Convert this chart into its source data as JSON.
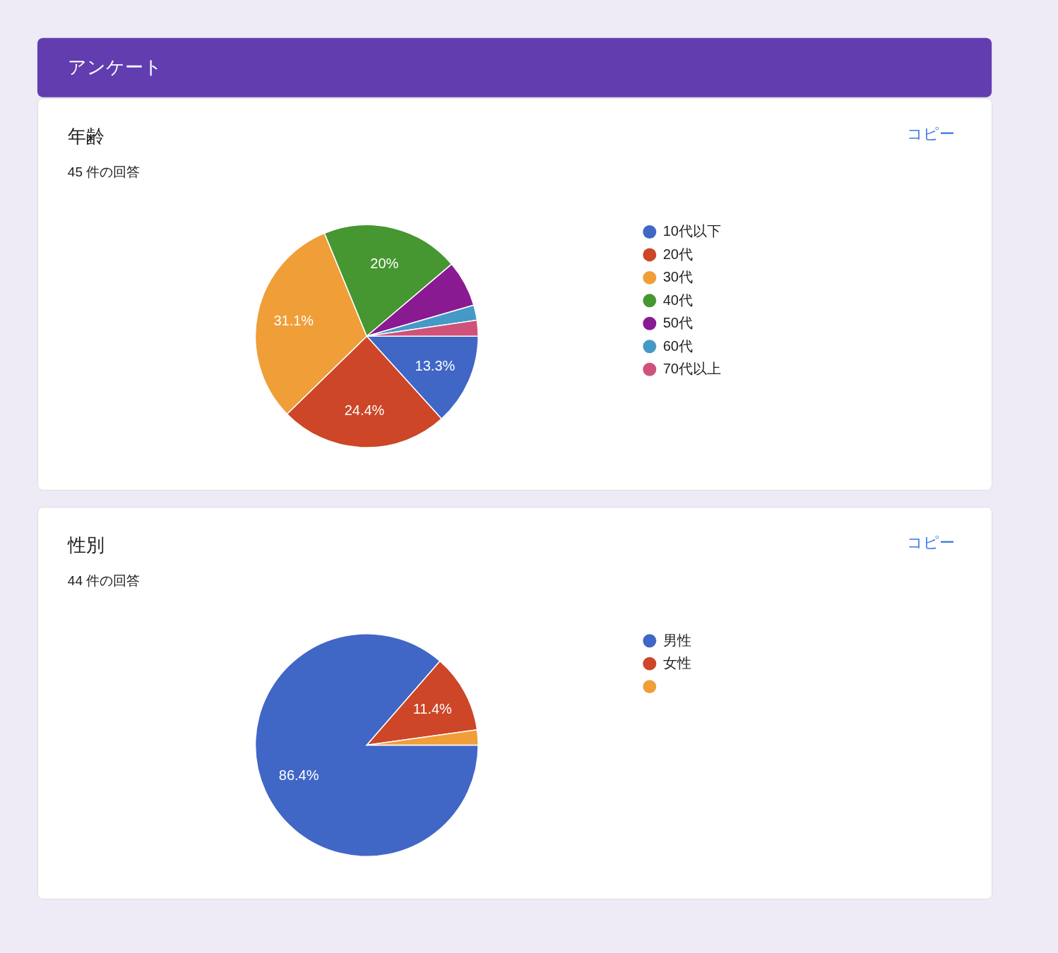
{
  "chart_data": [
    {
      "type": "other",
      "title": "アンケート"
    },
    {
      "type": "pie",
      "title": "年齢",
      "subtitle": "45 件の回答",
      "categories": [
        "10代以下",
        "20代",
        "30代",
        "40代",
        "50代",
        "60代",
        "70代以上"
      ],
      "values": [
        13.3,
        24.4,
        31.1,
        20,
        6.7,
        2.2,
        2.3
      ],
      "colors": [
        "#4066c6",
        "#cc4627",
        "#f09e38",
        "#469631",
        "#8a1a92",
        "#4599c6",
        "#cf527a"
      ],
      "value_labels": [
        "13.3%",
        "24.4%",
        "31.1%",
        "20%",
        null,
        null,
        null
      ],
      "legend": "right",
      "annotations": [
        "コピー"
      ]
    },
    {
      "type": "pie",
      "title": "性別",
      "subtitle": "44 件の回答",
      "categories": [
        "男性",
        "女性",
        null
      ],
      "values": [
        86.4,
        11.4,
        2.2
      ],
      "colors": [
        "#4066c6",
        "#cc4627",
        "#f09e38"
      ],
      "value_labels": [
        "86.4%",
        "11.4%",
        null
      ],
      "legend": "right",
      "annotations": [
        "コピー"
      ]
    }
  ]
}
